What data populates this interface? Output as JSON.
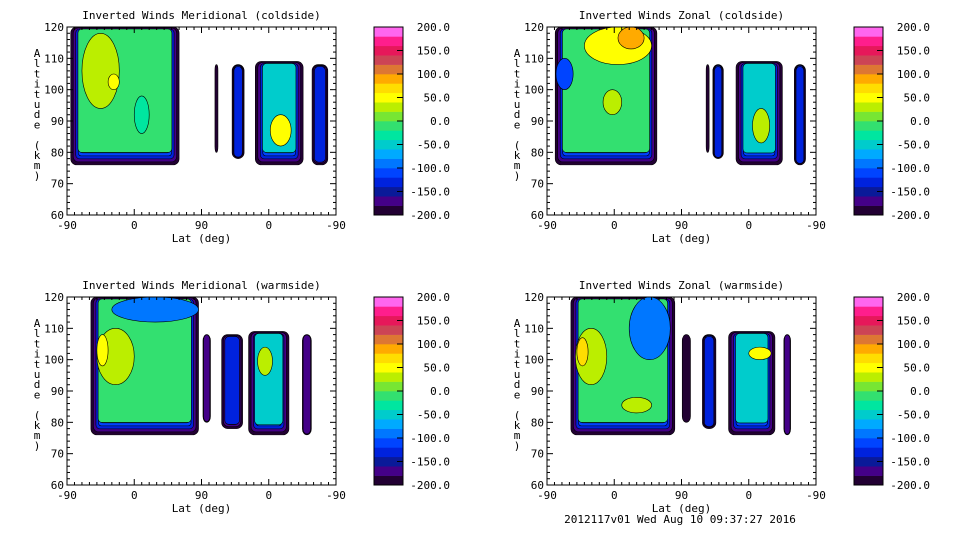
{
  "footer": "2012117v01 Wed Aug 10 09:37:27 2016",
  "colorbar": {
    "ticks": [
      "200.0",
      "150.0",
      "100.0",
      "50.0",
      "0.0",
      "-50.0",
      "-100.0",
      "-150.0",
      "-200.0"
    ],
    "range": [
      -200,
      200
    ],
    "colors": [
      "#220033",
      "#440088",
      "#0a1a99",
      "#0022dd",
      "#0044ff",
      "#0077ff",
      "#00aaff",
      "#00cccc",
      "#00e6a0",
      "#33e070",
      "#77e633",
      "#bbee00",
      "#ffff00",
      "#ffdd00",
      "#ffaa00",
      "#dd7733",
      "#cc4455",
      "#e6185a",
      "#ff1e8c",
      "#ff66ee"
    ]
  },
  "chart_data": [
    {
      "type": "heatmap",
      "title": "Inverted Winds Meridional (coldside)",
      "xlabel": "Lat (deg)",
      "ylabel": "Altitude (km)",
      "xticks": [
        "-90",
        "0",
        "90",
        "0",
        "-90"
      ],
      "yticks": [
        "60",
        "70",
        "80",
        "90",
        "100",
        "110",
        "120"
      ],
      "ylim": [
        60,
        120
      ],
      "regions": [
        {
          "x": [
            5,
            150
          ],
          "alt": [
            76,
            120
          ],
          "value": -20,
          "spots": [
            {
              "x": [
                20,
                70
              ],
              "alt": [
                94,
                118
              ],
              "value": 25
            },
            {
              "x": [
                55,
                70
              ],
              "alt": [
                100,
                105
              ],
              "value": 50
            },
            {
              "x": [
                90,
                110
              ],
              "alt": [
                86,
                98
              ],
              "value": -40
            }
          ]
        },
        {
          "x": [
            198,
            202
          ],
          "alt": [
            80,
            108
          ],
          "value": -200,
          "spots": []
        },
        {
          "x": [
            221,
            237
          ],
          "alt": [
            78,
            108
          ],
          "value": -130,
          "spots": []
        },
        {
          "x": [
            252,
            316
          ],
          "alt": [
            76,
            109
          ],
          "value": -45,
          "spots": [
            {
              "x": [
                272,
                300
              ],
              "alt": [
                82,
                92
              ],
              "value": 50
            }
          ]
        },
        {
          "x": [
            328,
            349
          ],
          "alt": [
            76,
            108
          ],
          "value": -130,
          "spots": []
        }
      ]
    },
    {
      "type": "heatmap",
      "title": "Inverted Winds Zonal (coldside)",
      "xlabel": "Lat (deg)",
      "ylabel": "Altitude (km)",
      "xticks": [
        "-90",
        "0",
        "90",
        "0",
        "-90"
      ],
      "yticks": [
        "60",
        "70",
        "80",
        "90",
        "100",
        "110",
        "120"
      ],
      "ylim": [
        60,
        120
      ],
      "regions": [
        {
          "x": [
            11,
            147
          ],
          "alt": [
            76,
            120
          ],
          "value": -15,
          "spots": [
            {
              "x": [
                50,
                140
              ],
              "alt": [
                108,
                120
              ],
              "value": 40
            },
            {
              "x": [
                95,
                130
              ],
              "alt": [
                113,
                120
              ],
              "value": 90
            },
            {
              "x": [
                12,
                35
              ],
              "alt": [
                100,
                110
              ],
              "value": -110
            },
            {
              "x": [
                75,
                100
              ],
              "alt": [
                92,
                100
              ],
              "value": 20
            }
          ]
        },
        {
          "x": [
            213,
            217
          ],
          "alt": [
            80,
            108
          ],
          "value": -200,
          "spots": []
        },
        {
          "x": [
            222,
            236
          ],
          "alt": [
            78,
            108
          ],
          "value": -130,
          "spots": []
        },
        {
          "x": [
            253,
            315
          ],
          "alt": [
            76,
            109
          ],
          "value": -50,
          "spots": [
            {
              "x": [
                275,
                298
              ],
              "alt": [
                83,
                94
              ],
              "value": 20
            }
          ]
        },
        {
          "x": [
            331,
            346
          ],
          "alt": [
            76,
            108
          ],
          "value": -130,
          "spots": []
        }
      ]
    },
    {
      "type": "heatmap",
      "title": "Inverted Winds Meridional (warmside)",
      "xlabel": "Lat (deg)",
      "ylabel": "Altitude (km)",
      "xticks": [
        "-90",
        "0",
        "90",
        "0",
        "-90"
      ],
      "yticks": [
        "60",
        "70",
        "80",
        "90",
        "100",
        "110",
        "120"
      ],
      "ylim": [
        60,
        120
      ],
      "regions": [
        {
          "x": [
            32,
            176
          ],
          "alt": [
            76,
            120
          ],
          "value": -20,
          "spots": [
            {
              "x": [
                40,
                90
              ],
              "alt": [
                92,
                110
              ],
              "value": 25
            },
            {
              "x": [
                40,
                55
              ],
              "alt": [
                98,
                108
              ],
              "value": 50
            },
            {
              "x": [
                60,
                176
              ],
              "alt": [
                112,
                120
              ],
              "value": -90
            }
          ]
        },
        {
          "x": [
            182,
            192
          ],
          "alt": [
            80,
            108
          ],
          "value": -150,
          "spots": []
        },
        {
          "x": [
            207,
            235
          ],
          "alt": [
            78,
            108
          ],
          "value": -130,
          "spots": []
        },
        {
          "x": [
            243,
            297
          ],
          "alt": [
            76,
            109
          ],
          "value": -60,
          "spots": [
            {
              "x": [
                255,
                275
              ],
              "alt": [
                95,
                104
              ],
              "value": 25
            }
          ]
        },
        {
          "x": [
            315,
            327
          ],
          "alt": [
            76,
            108
          ],
          "value": -140,
          "spots": []
        }
      ]
    },
    {
      "type": "heatmap",
      "title": "Inverted Winds Zonal (warmside)",
      "xlabel": "Lat (deg)",
      "ylabel": "Altitude (km)",
      "xticks": [
        "-90",
        "0",
        "90",
        "0",
        "-90"
      ],
      "yticks": [
        "60",
        "70",
        "80",
        "90",
        "100",
        "110",
        "120"
      ],
      "ylim": [
        60,
        120
      ],
      "regions": [
        {
          "x": [
            32,
            171
          ],
          "alt": [
            76,
            120
          ],
          "value": -10,
          "spots": [
            {
              "x": [
                38,
                80
              ],
              "alt": [
                92,
                110
              ],
              "value": 30
            },
            {
              "x": [
                40,
                55
              ],
              "alt": [
                98,
                107
              ],
              "value": 60
            },
            {
              "x": [
                110,
                165
              ],
              "alt": [
                100,
                120
              ],
              "value": -100
            },
            {
              "x": [
                100,
                140
              ],
              "alt": [
                83,
                88
              ],
              "value": 30
            }
          ]
        },
        {
          "x": [
            181,
            192
          ],
          "alt": [
            80,
            108
          ],
          "value": -170,
          "spots": []
        },
        {
          "x": [
            208,
            226
          ],
          "alt": [
            78,
            108
          ],
          "value": -130,
          "spots": []
        },
        {
          "x": [
            243,
            305
          ],
          "alt": [
            76,
            109
          ],
          "value": -50,
          "spots": [
            {
              "x": [
                270,
                300
              ],
              "alt": [
                100,
                104
              ],
              "value": 55
            }
          ]
        },
        {
          "x": [
            317,
            326
          ],
          "alt": [
            76,
            108
          ],
          "value": -140,
          "spots": []
        }
      ]
    }
  ]
}
